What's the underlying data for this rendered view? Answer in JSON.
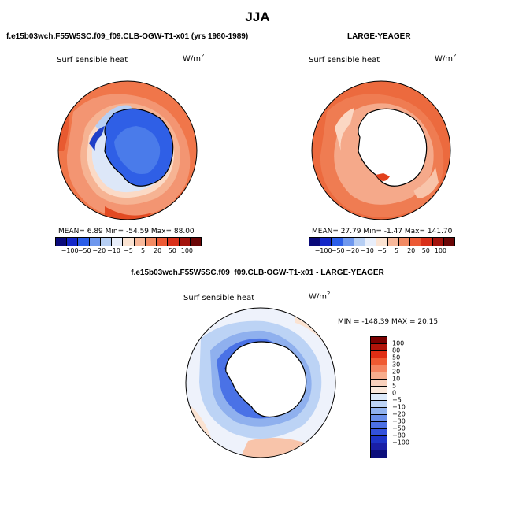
{
  "page": {
    "title": "JJA"
  },
  "panel_left": {
    "case": "f.e15b03wch.F55W5SC.f09_f09.CLB-OGW-T1-x01 (yrs 1980-1989)",
    "var": "Surf sensible heat",
    "unit_base": "W/m",
    "unit_exp": "2",
    "stats": "MEAN=   6.89   Min=  -54.59   Max=   88.00"
  },
  "panel_right": {
    "case": "LARGE-YEAGER",
    "var": "Surf sensible heat",
    "unit_base": "W/m",
    "unit_exp": "2",
    "stats": "MEAN=  27.79   Min=   -1.47   Max=  141.70"
  },
  "panel_diff": {
    "case": "f.e15b03wch.F55W5SC.f09_f09.CLB-OGW-T1-x01 - LARGE-YEAGER",
    "var": "Surf sensible heat",
    "unit_base": "W/m",
    "unit_exp": "2",
    "stats": "MIN = -148.39  MAX =  20.15"
  },
  "colorbar_h": {
    "colors": [
      "#0a0a7a",
      "#1428c8",
      "#2b5ee8",
      "#6f98ee",
      "#b7cff4",
      "#e8eefa",
      "#fbe3d2",
      "#f8b89a",
      "#f28a63",
      "#ec5a35",
      "#d9301a",
      "#a3130c",
      "#6b0606"
    ],
    "labels": [
      "−100",
      "−50",
      "−20",
      "−10",
      "−5",
      "5",
      "20",
      "50",
      "100"
    ]
  },
  "colorbar_v": {
    "colors": [
      "#7a0000",
      "#b0140a",
      "#e02e14",
      "#ef5a32",
      "#f48460",
      "#f7ad8d",
      "#f9d1bc",
      "#fbe9dc",
      "#ddeafa",
      "#bcd3f5",
      "#91b2ee",
      "#6a8fea",
      "#4c70e4",
      "#3251dc",
      "#1d34c8",
      "#1a1fa6",
      "#0c0f7c"
    ],
    "labels": [
      "100",
      "80",
      "50",
      "30",
      "20",
      "10",
      "5",
      "0",
      "−5",
      "−10",
      "−20",
      "−30",
      "−50",
      "−80",
      "−100"
    ]
  }
}
